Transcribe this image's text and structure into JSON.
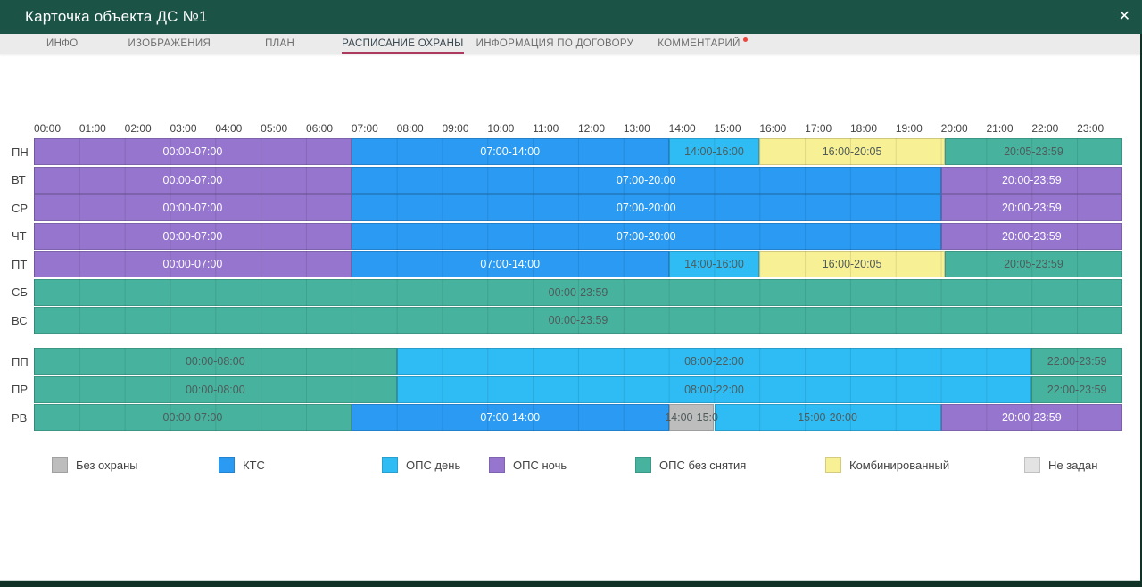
{
  "window": {
    "title": "Карточка объекта ДС №1",
    "close_glyph": "✕"
  },
  "tabs": [
    {
      "label": "ИНФО",
      "active": false,
      "badge": false
    },
    {
      "label": "ИЗОБРАЖЕНИЯ",
      "active": false,
      "badge": false
    },
    {
      "label": "ПЛАН",
      "active": false,
      "badge": false
    },
    {
      "label": "РАСПИСАНИЕ ОХРАНЫ",
      "active": true,
      "badge": false
    },
    {
      "label": "ИНФОРМАЦИЯ ПО ДОГОВОРУ",
      "active": false,
      "badge": false
    },
    {
      "label": "КОММЕНТАРИЙ",
      "active": false,
      "badge": true
    }
  ],
  "colors": {
    "header_green": "#1b5346",
    "frame_green": "#113327",
    "active_tab_underline": "#ac3a5e",
    "badge_red": "#ef443b"
  },
  "palette": {
    "none": "#bdbdbd",
    "kts": "#2a9af3",
    "ops_day": "#2fbcf4",
    "ops_night": "#9575cd",
    "ops_nostop": "#47b39e",
    "combined": "#f8f095",
    "unset": "#e3e3e3"
  },
  "chart_data": {
    "type": "heatmap",
    "title": "Расписание охраны",
    "x": {
      "unit": "hours",
      "range": [
        0,
        24
      ]
    },
    "time_labels": [
      "00:00",
      "01:00",
      "02:00",
      "03:00",
      "04:00",
      "05:00",
      "06:00",
      "07:00",
      "08:00",
      "09:00",
      "10:00",
      "11:00",
      "12:00",
      "13:00",
      "14:00",
      "15:00",
      "16:00",
      "17:00",
      "18:00",
      "19:00",
      "20:00",
      "21:00",
      "22:00",
      "23:00"
    ],
    "groups": [
      {
        "rows": [
          {
            "day": "ПН",
            "segments": [
              {
                "from": 0,
                "to": 7,
                "type": "ops_night",
                "label": "00:00-07:00",
                "text": "light"
              },
              {
                "from": 7,
                "to": 14,
                "type": "kts",
                "label": "07:00-14:00",
                "text": "light"
              },
              {
                "from": 14,
                "to": 16,
                "type": "ops_day",
                "label": "14:00-16:00",
                "text": "dark"
              },
              {
                "from": 16,
                "to": 20.083,
                "type": "combined",
                "label": "16:00-20:05",
                "text": "dark"
              },
              {
                "from": 20.083,
                "to": 24,
                "type": "ops_nostop",
                "label": "20:05-23:59",
                "text": "dark"
              }
            ]
          },
          {
            "day": "ВТ",
            "segments": [
              {
                "from": 0,
                "to": 7,
                "type": "ops_night",
                "label": "00:00-07:00",
                "text": "light"
              },
              {
                "from": 7,
                "to": 20,
                "type": "kts",
                "label": "07:00-20:00",
                "text": "light"
              },
              {
                "from": 20,
                "to": 24,
                "type": "ops_night",
                "label": "20:00-23:59",
                "text": "light"
              }
            ]
          },
          {
            "day": "СР",
            "segments": [
              {
                "from": 0,
                "to": 7,
                "type": "ops_night",
                "label": "00:00-07:00",
                "text": "light"
              },
              {
                "from": 7,
                "to": 20,
                "type": "kts",
                "label": "07:00-20:00",
                "text": "light"
              },
              {
                "from": 20,
                "to": 24,
                "type": "ops_night",
                "label": "20:00-23:59",
                "text": "light"
              }
            ]
          },
          {
            "day": "ЧТ",
            "segments": [
              {
                "from": 0,
                "to": 7,
                "type": "ops_night",
                "label": "00:00-07:00",
                "text": "light"
              },
              {
                "from": 7,
                "to": 20,
                "type": "kts",
                "label": "07:00-20:00",
                "text": "light"
              },
              {
                "from": 20,
                "to": 24,
                "type": "ops_night",
                "label": "20:00-23:59",
                "text": "light"
              }
            ]
          },
          {
            "day": "ПТ",
            "segments": [
              {
                "from": 0,
                "to": 7,
                "type": "ops_night",
                "label": "00:00-07:00",
                "text": "light"
              },
              {
                "from": 7,
                "to": 14,
                "type": "kts",
                "label": "07:00-14:00",
                "text": "light"
              },
              {
                "from": 14,
                "to": 16,
                "type": "ops_day",
                "label": "14:00-16:00",
                "text": "dark"
              },
              {
                "from": 16,
                "to": 20.083,
                "type": "combined",
                "label": "16:00-20:05",
                "text": "dark"
              },
              {
                "from": 20.083,
                "to": 24,
                "type": "ops_nostop",
                "label": "20:05-23:59",
                "text": "dark"
              }
            ]
          },
          {
            "day": "СБ",
            "segments": [
              {
                "from": 0,
                "to": 24,
                "type": "ops_nostop",
                "label": "00:00-23:59",
                "text": "dark"
              }
            ]
          },
          {
            "day": "ВС",
            "segments": [
              {
                "from": 0,
                "to": 24,
                "type": "ops_nostop",
                "label": "00:00-23:59",
                "text": "dark"
              }
            ]
          }
        ]
      },
      {
        "rows": [
          {
            "day": "ПП",
            "segments": [
              {
                "from": 0,
                "to": 8,
                "type": "ops_nostop",
                "label": "00:00-08:00",
                "text": "dark"
              },
              {
                "from": 8,
                "to": 22,
                "type": "ops_day",
                "label": "08:00-22:00",
                "text": "dark"
              },
              {
                "from": 22,
                "to": 24,
                "type": "ops_nostop",
                "label": "22:00-23:59",
                "text": "dark"
              }
            ]
          },
          {
            "day": "ПР",
            "segments": [
              {
                "from": 0,
                "to": 8,
                "type": "ops_nostop",
                "label": "00:00-08:00",
                "text": "dark"
              },
              {
                "from": 8,
                "to": 22,
                "type": "ops_day",
                "label": "08:00-22:00",
                "text": "dark"
              },
              {
                "from": 22,
                "to": 24,
                "type": "ops_nostop",
                "label": "22:00-23:59",
                "text": "dark"
              }
            ]
          },
          {
            "day": "РВ",
            "segments": [
              {
                "from": 0,
                "to": 7,
                "type": "ops_nostop",
                "label": "00:00-07:00",
                "text": "dark"
              },
              {
                "from": 7,
                "to": 14,
                "type": "kts",
                "label": "07:00-14:00",
                "text": "light"
              },
              {
                "from": 14,
                "to": 15,
                "type": "none",
                "label": "14:00-15:0",
                "text": "dark"
              },
              {
                "from": 15,
                "to": 20,
                "type": "ops_day",
                "label": "15:00-20:00",
                "text": "dark"
              },
              {
                "from": 20,
                "to": 24,
                "type": "ops_night",
                "label": "20:00-23:59",
                "text": "light"
              }
            ]
          }
        ]
      }
    ]
  },
  "legend": {
    "items": [
      {
        "label": "Без охраны",
        "type": "none"
      },
      {
        "label": "КТС",
        "type": "kts"
      },
      {
        "label": "ОПС день",
        "type": "ops_day"
      },
      {
        "label": "ОПС ночь",
        "type": "ops_night"
      },
      {
        "label": "ОПС без снятия",
        "type": "ops_nostop"
      },
      {
        "label": "Комбинированный",
        "type": "combined"
      },
      {
        "label": "Не задан",
        "type": "unset"
      }
    ]
  }
}
